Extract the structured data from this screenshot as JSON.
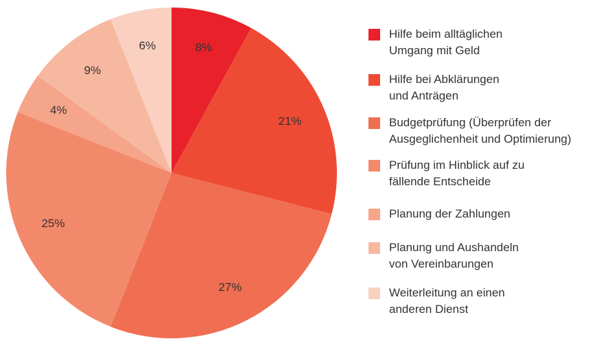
{
  "chart_data": {
    "type": "pie",
    "categories": [
      "Hilfe beim alltäglichen\nUmgang mit Geld",
      "Hilfe bei Abklärungen\nund Anträgen",
      "Budgetprüfung (Überprüfen der\nAusgeglichenheit und Optimierung)",
      "Prüfung im Hinblick auf zu\nfällende Entscheide",
      "Planung der Zahlungen",
      "Planung und Aushandeln\nvon Vereinbarungen",
      "Weiterleitung an einen\nanderen Dienst"
    ],
    "values": [
      8,
      21,
      27,
      25,
      4,
      9,
      6
    ],
    "value_labels": [
      "8%",
      "21%",
      "27%",
      "25%",
      "4%",
      "9%",
      "6%"
    ],
    "colors": [
      "#e8212a",
      "#ee4b35",
      "#f06e52",
      "#f3896b",
      "#f5a58a",
      "#f7b8a0",
      "#fad1c1"
    ],
    "legend": "right"
  }
}
